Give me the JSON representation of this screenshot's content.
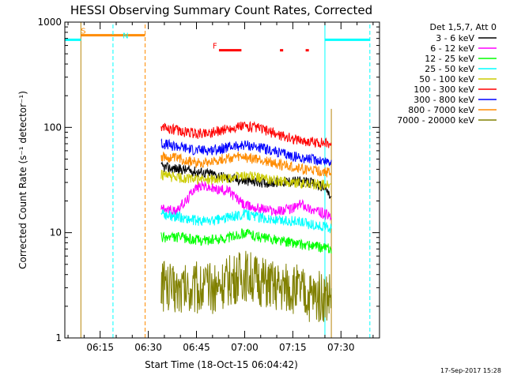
{
  "chart_data": {
    "type": "line",
    "title": "HESSI Observing Summary Count Rates, Corrected",
    "xlabel": "Start Time (18-Oct-15 06:04:42)",
    "ylabel": "Corrected Count Rate (s⁻¹ detector⁻¹)",
    "y_scale": "log",
    "ylim": [
      1,
      1000
    ],
    "y_ticks": [
      1,
      10,
      100,
      1000
    ],
    "y_tick_labels": [
      "1",
      "10",
      "100",
      "1000"
    ],
    "xlim": [
      "06:04",
      "07:42"
    ],
    "x_ticks": [
      "06:15",
      "06:30",
      "06:45",
      "07:00",
      "07:15",
      "07:30"
    ],
    "legend_title": "Det 1,5,7, Att 0",
    "legend_placement": "right, outside plot",
    "grid": false,
    "series": [
      {
        "name": "3 - 6 keV",
        "color": "#000000",
        "points": [
          [
            "06:34",
            42
          ],
          [
            "06:40",
            40
          ],
          [
            "06:45",
            38
          ],
          [
            "06:50",
            36
          ],
          [
            "06:55",
            33
          ],
          [
            "07:00",
            31
          ],
          [
            "07:05",
            30
          ],
          [
            "07:10",
            30
          ],
          [
            "07:15",
            31
          ],
          [
            "07:20",
            30
          ],
          [
            "07:25",
            27
          ],
          [
            "07:27",
            21
          ]
        ]
      },
      {
        "name": "6 - 12 keV",
        "color": "#ff00ff",
        "points": [
          [
            "06:34",
            17
          ],
          [
            "06:38",
            16
          ],
          [
            "06:42",
            20
          ],
          [
            "06:44",
            26
          ],
          [
            "06:47",
            28
          ],
          [
            "06:50",
            26
          ],
          [
            "06:55",
            25
          ],
          [
            "07:00",
            18
          ],
          [
            "07:05",
            17
          ],
          [
            "07:10",
            16
          ],
          [
            "07:15",
            17
          ],
          [
            "07:18",
            19
          ],
          [
            "07:20",
            17
          ],
          [
            "07:25",
            15
          ],
          [
            "07:27",
            14
          ]
        ]
      },
      {
        "name": "12 - 25 keV",
        "color": "#00ff00",
        "points": [
          [
            "06:34",
            9
          ],
          [
            "06:40",
            9
          ],
          [
            "06:45",
            8.5
          ],
          [
            "06:50",
            8.5
          ],
          [
            "06:55",
            9
          ],
          [
            "07:00",
            10
          ],
          [
            "07:05",
            9
          ],
          [
            "07:10",
            8.5
          ],
          [
            "07:15",
            8
          ],
          [
            "07:20",
            7.5
          ],
          [
            "07:27",
            7
          ]
        ]
      },
      {
        "name": "25 - 50 keV",
        "color": "#00ffff",
        "points": [
          [
            "06:34",
            15
          ],
          [
            "06:40",
            14
          ],
          [
            "06:45",
            13
          ],
          [
            "06:50",
            13
          ],
          [
            "06:55",
            14
          ],
          [
            "07:00",
            15
          ],
          [
            "07:05",
            14
          ],
          [
            "07:10",
            13
          ],
          [
            "07:15",
            13
          ],
          [
            "07:20",
            12
          ],
          [
            "07:27",
            11
          ]
        ]
      },
      {
        "name": "50 - 100 keV",
        "color": "#cccc00",
        "points": [
          [
            "06:34",
            35
          ],
          [
            "06:40",
            33
          ],
          [
            "06:45",
            32
          ],
          [
            "06:50",
            32
          ],
          [
            "06:55",
            33
          ],
          [
            "07:00",
            35
          ],
          [
            "07:05",
            33
          ],
          [
            "07:10",
            31
          ],
          [
            "07:15",
            30
          ],
          [
            "07:20",
            29
          ],
          [
            "07:27",
            28
          ]
        ]
      },
      {
        "name": "100 - 300 keV",
        "color": "#ff0000",
        "points": [
          [
            "06:34",
            100
          ],
          [
            "06:40",
            92
          ],
          [
            "06:45",
            87
          ],
          [
            "06:50",
            90
          ],
          [
            "06:55",
            97
          ],
          [
            "07:00",
            103
          ],
          [
            "07:05",
            97
          ],
          [
            "07:10",
            86
          ],
          [
            "07:15",
            78
          ],
          [
            "07:20",
            73
          ],
          [
            "07:27",
            70
          ]
        ]
      },
      {
        "name": "300 - 800 keV",
        "color": "#0000ff",
        "points": [
          [
            "06:34",
            70
          ],
          [
            "06:40",
            65
          ],
          [
            "06:45",
            60
          ],
          [
            "06:50",
            61
          ],
          [
            "06:55",
            65
          ],
          [
            "07:00",
            68
          ],
          [
            "07:05",
            64
          ],
          [
            "07:10",
            58
          ],
          [
            "07:15",
            53
          ],
          [
            "07:20",
            50
          ],
          [
            "07:27",
            47
          ]
        ]
      },
      {
        "name": "800 - 7000 keV",
        "color": "#ff8c00",
        "points": [
          [
            "06:34",
            52
          ],
          [
            "06:40",
            50
          ],
          [
            "06:45",
            46
          ],
          [
            "06:50",
            48
          ],
          [
            "06:55",
            51
          ],
          [
            "07:00",
            52
          ],
          [
            "07:05",
            49
          ],
          [
            "07:10",
            45
          ],
          [
            "07:15",
            42
          ],
          [
            "07:20",
            39
          ],
          [
            "07:27",
            37
          ]
        ]
      },
      {
        "name": "7000 - 20000 keV",
        "color": "#808000",
        "points": [
          [
            "06:34",
            3
          ],
          [
            "06:40",
            3
          ],
          [
            "06:45",
            3
          ],
          [
            "06:50",
            3
          ],
          [
            "06:55",
            3.5
          ],
          [
            "07:00",
            4
          ],
          [
            "07:05",
            3.5
          ],
          [
            "07:10",
            3
          ],
          [
            "07:15",
            3
          ],
          [
            "07:20",
            2.5
          ],
          [
            "07:27",
            2.5
          ]
        ]
      }
    ],
    "annotations": [
      {
        "label": "S",
        "color": "#ff8c00",
        "x": "06:09",
        "y": 750
      },
      {
        "label": "N",
        "color": "#00ffff",
        "x": "06:22",
        "y": 680
      },
      {
        "label": "F",
        "color": "#ff0000",
        "x": "06:50",
        "y": 540
      }
    ],
    "timestamp": "17-Sep-2017 15:28"
  },
  "colors": {
    "saa": "#00ffff",
    "night": "#ff8c00",
    "flare": "#ff0000",
    "olive": "#b8860b"
  }
}
